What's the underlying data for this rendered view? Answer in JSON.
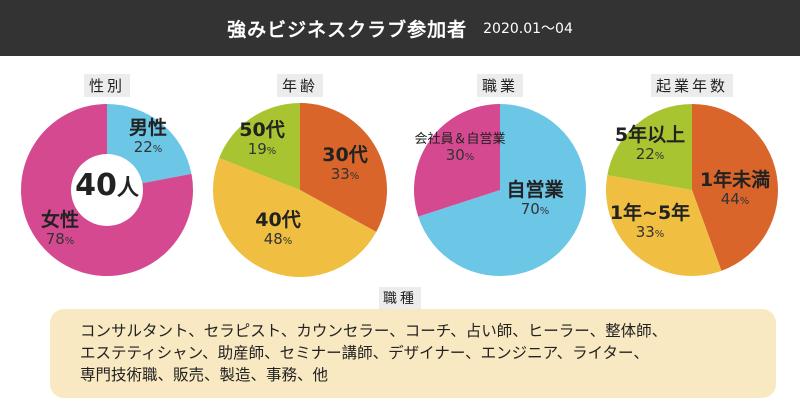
{
  "header": {
    "title": "強みビジネスクラブ参加者",
    "period": "2020.01～04"
  },
  "center_label": {
    "value": "40",
    "unit": "人"
  },
  "chart_data": [
    {
      "type": "pie",
      "title": "性別",
      "donut": true,
      "slices": [
        {
          "label": "男性",
          "value": 22,
          "color": "#6cc6e6"
        },
        {
          "label": "女性",
          "value": 78,
          "color": "#d4498f"
        }
      ]
    },
    {
      "type": "pie",
      "title": "年齢",
      "slices": [
        {
          "label": "30代",
          "value": 33,
          "color": "#d9652a"
        },
        {
          "label": "40代",
          "value": 48,
          "color": "#f0bf41"
        },
        {
          "label": "50代",
          "value": 19,
          "color": "#a8c431"
        }
      ]
    },
    {
      "type": "pie",
      "title": "職業",
      "slices": [
        {
          "label": "自営業",
          "value": 70,
          "color": "#6cc6e6"
        },
        {
          "label": "会社員＆自営業",
          "value": 30,
          "color": "#d4498f"
        }
      ]
    },
    {
      "type": "pie",
      "title": "起業年数",
      "slices": [
        {
          "label": "1年未満",
          "value": 44,
          "color": "#d9652a"
        },
        {
          "label": "1年~5年",
          "value": 33,
          "color": "#f0bf41"
        },
        {
          "label": "5年以上",
          "value": 22,
          "color": "#a8c431"
        }
      ]
    }
  ],
  "percent_sign": "%",
  "jobs": {
    "title": "職種",
    "lines": [
      "コンサルタント、セラピスト、カウンセラー、コーチ、占い師、ヒーラー、整体師、",
      "エステティシャン、助産師、セミナー講師、デザイナー、エンジニア、ライター、",
      "専門技術職、販売、製造、事務、他"
    ]
  }
}
